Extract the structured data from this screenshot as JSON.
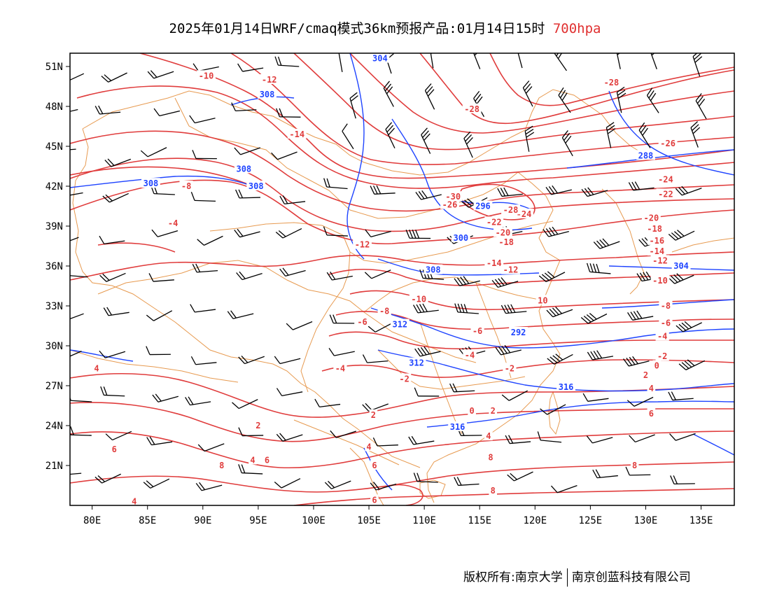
{
  "title": {
    "main": "2025年01月14日WRF/cmaq模式36km预报产品:01月14日15时",
    "level": "700hpa"
  },
  "axes": {
    "lon_labels": [
      "80E",
      "85E",
      "90E",
      "95E",
      "100E",
      "105E",
      "110E",
      "115E",
      "120E",
      "125E",
      "130E",
      "135E"
    ],
    "lon_values": [
      80,
      85,
      90,
      95,
      100,
      105,
      110,
      115,
      120,
      125,
      130,
      135
    ],
    "lat_labels": [
      "51N",
      "48N",
      "45N",
      "42N",
      "39N",
      "36N",
      "33N",
      "30N",
      "27N",
      "24N",
      "21N"
    ],
    "lat_values": [
      51,
      48,
      45,
      42,
      39,
      36,
      33,
      30,
      27,
      24,
      21
    ],
    "lon_range": [
      78,
      138
    ],
    "lat_range": [
      18,
      52
    ]
  },
  "temperature_contour_labels": [
    {
      "text": "-10",
      "lon": 90.3,
      "lat": 50.3
    },
    {
      "text": "-12",
      "lon": 96.0,
      "lat": 50.0
    },
    {
      "text": "-14",
      "lon": 98.5,
      "lat": 45.9
    },
    {
      "text": "-8",
      "lon": 88.5,
      "lat": 42.0
    },
    {
      "text": "-4",
      "lon": 87.3,
      "lat": 39.2
    },
    {
      "text": "-12",
      "lon": 104.4,
      "lat": 37.6
    },
    {
      "text": "-10",
      "lon": 109.5,
      "lat": 33.5
    },
    {
      "text": "-8",
      "lon": 106.4,
      "lat": 32.6
    },
    {
      "text": "-6",
      "lon": 104.4,
      "lat": 31.8
    },
    {
      "text": "-4",
      "lon": 102.4,
      "lat": 28.3
    },
    {
      "text": "-2",
      "lon": 108.2,
      "lat": 27.5
    },
    {
      "text": "-2",
      "lon": 117.7,
      "lat": 28.3
    },
    {
      "text": "0",
      "lon": 114.3,
      "lat": 25.1
    },
    {
      "text": "2",
      "lon": 116.2,
      "lat": 25.1
    },
    {
      "text": "-4",
      "lon": 114.1,
      "lat": 29.3
    },
    {
      "text": "-6",
      "lon": 114.8,
      "lat": 31.1
    },
    {
      "text": "10",
      "lon": 120.7,
      "lat": 33.4
    },
    {
      "text": "-12",
      "lon": 117.8,
      "lat": 35.7
    },
    {
      "text": "-14",
      "lon": 116.3,
      "lat": 36.2
    },
    {
      "text": "-18",
      "lon": 117.4,
      "lat": 37.8
    },
    {
      "text": "-20",
      "lon": 117.1,
      "lat": 38.5
    },
    {
      "text": "-22",
      "lon": 116.3,
      "lat": 39.3
    },
    {
      "text": "-24",
      "lon": 119.0,
      "lat": 39.9
    },
    {
      "text": "-26",
      "lon": 112.3,
      "lat": 40.6
    },
    {
      "text": "-28",
      "lon": 114.3,
      "lat": 47.8
    },
    {
      "text": "-30",
      "lon": 112.6,
      "lat": 41.2
    },
    {
      "text": "-28",
      "lon": 117.8,
      "lat": 40.2
    },
    {
      "text": "-28",
      "lon": 126.9,
      "lat": 49.8
    },
    {
      "text": "-26",
      "lon": 132.0,
      "lat": 45.2
    },
    {
      "text": "-24",
      "lon": 131.8,
      "lat": 42.5
    },
    {
      "text": "-22",
      "lon": 131.8,
      "lat": 41.4
    },
    {
      "text": "-20",
      "lon": 130.5,
      "lat": 39.6
    },
    {
      "text": "-18",
      "lon": 130.8,
      "lat": 38.8
    },
    {
      "text": "-16",
      "lon": 131.0,
      "lat": 37.9
    },
    {
      "text": "-14",
      "lon": 131.0,
      "lat": 37.1
    },
    {
      "text": "-12",
      "lon": 131.3,
      "lat": 36.4
    },
    {
      "text": "-10",
      "lon": 131.3,
      "lat": 34.9
    },
    {
      "text": "-8",
      "lon": 131.8,
      "lat": 33.0
    },
    {
      "text": "-6",
      "lon": 131.8,
      "lat": 31.7
    },
    {
      "text": "-4",
      "lon": 131.5,
      "lat": 30.7
    },
    {
      "text": "-2",
      "lon": 131.5,
      "lat": 29.2
    },
    {
      "text": "0",
      "lon": 131.0,
      "lat": 28.5
    },
    {
      "text": "2",
      "lon": 130.0,
      "lat": 27.8
    },
    {
      "text": "4",
      "lon": 130.5,
      "lat": 26.8
    },
    {
      "text": "6",
      "lon": 130.5,
      "lat": 24.9
    },
    {
      "text": "8",
      "lon": 129.0,
      "lat": 21.0
    },
    {
      "text": "8",
      "lon": 116.0,
      "lat": 21.6
    },
    {
      "text": "8",
      "lon": 116.2,
      "lat": 19.1
    },
    {
      "text": "6",
      "lon": 105.5,
      "lat": 18.4
    },
    {
      "text": "6",
      "lon": 105.5,
      "lat": 21.0
    },
    {
      "text": "4",
      "lon": 105.0,
      "lat": 22.4
    },
    {
      "text": "4",
      "lon": 115.8,
      "lat": 23.2
    },
    {
      "text": "2",
      "lon": 95.0,
      "lat": 24.0
    },
    {
      "text": "2",
      "lon": 105.4,
      "lat": 24.8
    },
    {
      "text": "4",
      "lon": 94.5,
      "lat": 21.4
    },
    {
      "text": "6",
      "lon": 95.8,
      "lat": 21.4
    },
    {
      "text": "8",
      "lon": 91.7,
      "lat": 21.0
    },
    {
      "text": "6",
      "lon": 82.0,
      "lat": 22.2
    },
    {
      "text": "4",
      "lon": 83.8,
      "lat": 18.3
    },
    {
      "text": "4",
      "lon": 80.4,
      "lat": 28.3
    }
  ],
  "height_contour_labels": [
    {
      "text": "304",
      "lon": 106.0,
      "lat": 51.6
    },
    {
      "text": "308",
      "lon": 95.8,
      "lat": 48.9
    },
    {
      "text": "308",
      "lon": 93.7,
      "lat": 43.3
    },
    {
      "text": "308",
      "lon": 94.8,
      "lat": 42.0
    },
    {
      "text": "308",
      "lon": 85.3,
      "lat": 42.2
    },
    {
      "text": "300",
      "lon": 113.3,
      "lat": 38.1
    },
    {
      "text": "296",
      "lon": 115.3,
      "lat": 40.5
    },
    {
      "text": "308",
      "lon": 110.8,
      "lat": 35.7
    },
    {
      "text": "312",
      "lon": 107.8,
      "lat": 31.6
    },
    {
      "text": "312",
      "lon": 109.3,
      "lat": 28.7
    },
    {
      "text": "316",
      "lon": 113.0,
      "lat": 23.9
    },
    {
      "text": "316",
      "lon": 122.8,
      "lat": 26.9
    },
    {
      "text": "304",
      "lon": 133.2,
      "lat": 36.0
    },
    {
      "text": "288",
      "lon": 130.0,
      "lat": 44.3
    },
    {
      "text": "292",
      "lon": 118.5,
      "lat": 31.0
    }
  ],
  "legend_colors": {
    "temperature_contour": "#e03c3c",
    "height_contour": "#1f44ff",
    "boundary": "#e79a50",
    "wind_barb": "#000000",
    "level_text": "#e03030"
  },
  "footer": {
    "left": "版权所有:南京大学",
    "right": "南京创蓝科技有限公司"
  }
}
